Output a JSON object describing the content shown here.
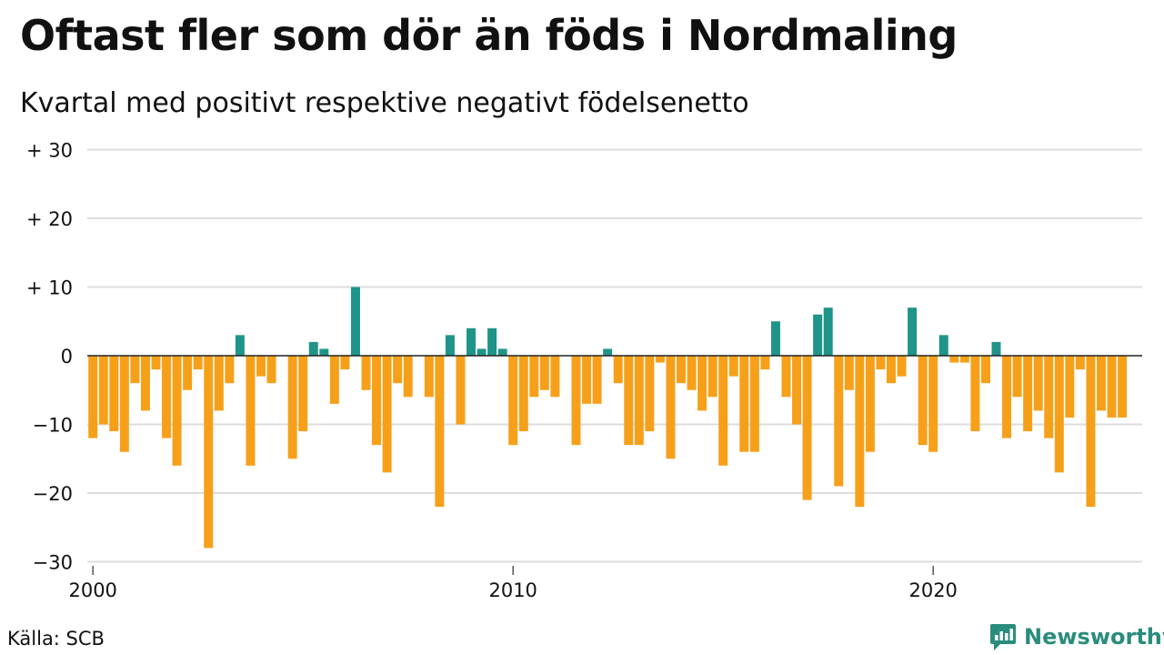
{
  "title": "Oftast fler som dör än föds i Nordmaling",
  "subtitle": "Kvartal med positivt respektive negativt födelsenetto",
  "source": "Källa: SCB",
  "brand": {
    "name": "Newsworthy",
    "icon": "newsworthy-logo-icon"
  },
  "colors": {
    "positive": "#1f9488",
    "negative": "#f6a01a",
    "grid": "#dddddd",
    "axis": "#222222"
  },
  "chart_data": {
    "type": "bar",
    "title": "Oftast fler som dör än föds i Nordmaling",
    "subtitle": "Kvartal med positivt respektive negativt födelsenetto",
    "xlabel": "",
    "ylabel": "",
    "x_start": 2000,
    "periods_per_year": 4,
    "ylim": [
      -30,
      30
    ],
    "yticks": [
      {
        "value": 30,
        "label": "+ 30"
      },
      {
        "value": 20,
        "label": "+ 20"
      },
      {
        "value": 10,
        "label": "+ 10"
      },
      {
        "value": 0,
        "label": "0"
      },
      {
        "value": -10,
        "label": "−10"
      },
      {
        "value": -20,
        "label": "−20"
      },
      {
        "value": -30,
        "label": "−30"
      }
    ],
    "xticks": [
      {
        "value": 2000,
        "label": "2000"
      },
      {
        "value": 2010,
        "label": "2010"
      },
      {
        "value": 2020,
        "label": "2020"
      }
    ],
    "grid": true,
    "legend": "none",
    "values": [
      -12,
      -10,
      -11,
      -14,
      -4,
      -8,
      -2,
      -12,
      -16,
      -5,
      -2,
      -28,
      -8,
      -4,
      3,
      -16,
      -3,
      -4,
      0,
      -15,
      -11,
      2,
      1,
      -7,
      -2,
      10,
      -5,
      -13,
      -17,
      -4,
      -6,
      0,
      -6,
      -22,
      3,
      -10,
      4,
      1,
      4,
      1,
      -13,
      -11,
      -6,
      -5,
      -6,
      0,
      -13,
      -7,
      -7,
      1,
      -4,
      -13,
      -13,
      -11,
      -1,
      -15,
      -4,
      -5,
      -8,
      -6,
      -16,
      -3,
      -14,
      -14,
      -2,
      5,
      -6,
      -10,
      -21,
      6,
      7,
      -19,
      -5,
      -22,
      -14,
      -2,
      -4,
      -3,
      7,
      -13,
      -14,
      3,
      -1,
      -1,
      -11,
      -4,
      2,
      -12,
      -6,
      -11,
      -8,
      -12,
      -17,
      -9,
      -2,
      -22,
      -8,
      -9,
      -9
    ]
  }
}
